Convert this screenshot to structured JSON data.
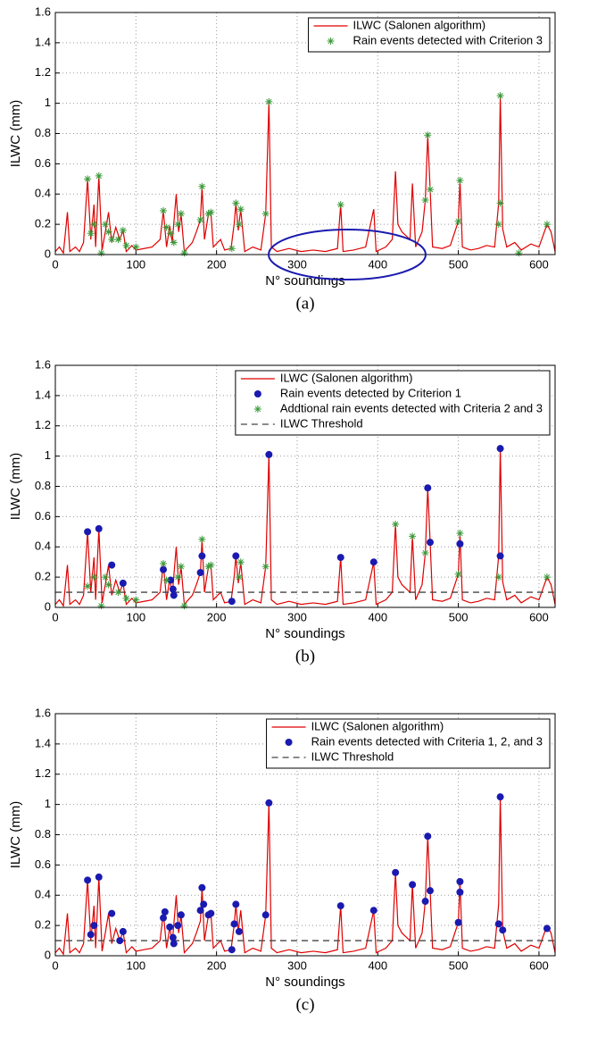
{
  "chart_data": [
    {
      "type": "line",
      "title": "(a)",
      "xlabel": "N° soundings",
      "ylabel": "ILWC (mm)",
      "xlim": [
        0,
        620
      ],
      "ylim": [
        0,
        1.6
      ],
      "xticks": [
        0,
        100,
        200,
        300,
        400,
        500,
        600
      ],
      "yticks": [
        0,
        0.2,
        0.4,
        0.6,
        0.8,
        1,
        1.2,
        1.4,
        1.6
      ],
      "grid": true,
      "legend": "upper right",
      "series": [
        {
          "name": "ILWC (Salonen algorithm)",
          "color": "#e00000",
          "style": "line",
          "x": [
            0,
            5,
            10,
            15,
            18,
            25,
            30,
            35,
            40,
            44,
            48,
            50,
            54,
            58,
            62,
            66,
            70,
            75,
            80,
            84,
            88,
            95,
            100,
            110,
            120,
            130,
            134,
            138,
            142,
            145,
            150,
            153,
            156,
            160,
            170,
            175,
            180,
            182,
            185,
            190,
            193,
            196,
            205,
            210,
            218,
            222,
            224,
            227,
            230,
            235,
            245,
            255,
            261,
            265,
            268,
            275,
            290,
            305,
            320,
            335,
            350,
            354,
            357,
            370,
            385,
            395,
            398,
            410,
            418,
            422,
            425,
            430,
            440,
            443,
            447,
            455,
            459,
            462,
            465,
            468,
            480,
            490,
            500,
            502,
            505,
            515,
            525,
            535,
            545,
            550,
            552,
            555,
            560,
            570,
            578,
            590,
            600,
            610,
            615,
            620
          ],
          "values": [
            0.02,
            0.05,
            0.01,
            0.28,
            0.02,
            0.05,
            0.02,
            0.08,
            0.5,
            0.1,
            0.33,
            0.05,
            0.52,
            0.03,
            0.15,
            0.28,
            0.08,
            0.18,
            0.1,
            0.16,
            0.02,
            0.06,
            0.03,
            0.04,
            0.05,
            0.1,
            0.29,
            0.05,
            0.19,
            0.08,
            0.4,
            0.15,
            0.27,
            0.02,
            0.08,
            0.15,
            0.23,
            0.45,
            0.1,
            0.27,
            0.28,
            0.05,
            0.1,
            0.03,
            0.04,
            0.21,
            0.34,
            0.16,
            0.3,
            0.02,
            0.05,
            0.03,
            0.27,
            1.01,
            0.05,
            0.02,
            0.04,
            0.02,
            0.03,
            0.02,
            0.04,
            0.33,
            0.02,
            0.03,
            0.05,
            0.3,
            0.02,
            0.05,
            0.1,
            0.55,
            0.2,
            0.15,
            0.1,
            0.47,
            0.05,
            0.15,
            0.36,
            0.79,
            0.43,
            0.05,
            0.04,
            0.06,
            0.22,
            0.49,
            0.05,
            0.03,
            0.04,
            0.06,
            0.05,
            0.34,
            1.05,
            0.17,
            0.05,
            0.08,
            0.03,
            0.07,
            0.05,
            0.2,
            0.15,
            0.02
          ]
        },
        {
          "name": "Rain events  detected with Criterion 3",
          "color": "#3a9a3a",
          "style": "star",
          "x": [
            40,
            44,
            48,
            54,
            57,
            62,
            66,
            70,
            78,
            84,
            88,
            100,
            134,
            138,
            143,
            147,
            152,
            156,
            160,
            180,
            182,
            190,
            193,
            219,
            224,
            228,
            230,
            261,
            265,
            354,
            459,
            462,
            465,
            500,
            502,
            550,
            552,
            552,
            575,
            610
          ],
          "values": [
            0.5,
            0.14,
            0.2,
            0.52,
            0.01,
            0.2,
            0.15,
            0.1,
            0.1,
            0.16,
            0.06,
            0.05,
            0.29,
            0.18,
            0.14,
            0.08,
            0.2,
            0.27,
            0.01,
            0.23,
            0.45,
            0.27,
            0.28,
            0.04,
            0.34,
            0.2,
            0.3,
            0.27,
            1.01,
            0.33,
            0.36,
            0.79,
            0.43,
            0.22,
            0.49,
            0.2,
            0.34,
            1.05,
            0.01,
            0.2
          ]
        }
      ]
    },
    {
      "type": "line",
      "title": "(b)",
      "xlabel": "N° soundings",
      "ylabel": "ILWC (mm)",
      "xlim": [
        0,
        620
      ],
      "ylim": [
        0,
        1.6
      ],
      "xticks": [
        0,
        100,
        200,
        300,
        400,
        500,
        600
      ],
      "yticks": [
        0,
        0.2,
        0.4,
        0.6,
        0.8,
        1,
        1.2,
        1.4,
        1.6
      ],
      "grid": true,
      "legend": "upper right",
      "series": [
        {
          "name": "ILWC (Salonen algorithm)",
          "color": "#e00000",
          "style": "line",
          "x": [
            0,
            5,
            10,
            15,
            18,
            25,
            30,
            35,
            40,
            44,
            48,
            50,
            54,
            58,
            62,
            66,
            70,
            75,
            80,
            84,
            88,
            95,
            100,
            110,
            120,
            130,
            134,
            138,
            142,
            145,
            150,
            153,
            156,
            160,
            170,
            175,
            180,
            182,
            185,
            190,
            193,
            196,
            205,
            210,
            218,
            222,
            224,
            227,
            230,
            235,
            245,
            255,
            261,
            265,
            268,
            275,
            290,
            305,
            320,
            335,
            350,
            354,
            357,
            370,
            385,
            395,
            398,
            410,
            418,
            422,
            425,
            430,
            440,
            443,
            447,
            455,
            459,
            462,
            465,
            468,
            480,
            490,
            500,
            502,
            505,
            515,
            525,
            535,
            545,
            550,
            552,
            555,
            560,
            570,
            578,
            590,
            600,
            610,
            615,
            620
          ],
          "values": [
            0.02,
            0.05,
            0.01,
            0.28,
            0.02,
            0.05,
            0.02,
            0.08,
            0.5,
            0.1,
            0.33,
            0.05,
            0.52,
            0.03,
            0.15,
            0.28,
            0.08,
            0.18,
            0.1,
            0.16,
            0.02,
            0.06,
            0.03,
            0.04,
            0.05,
            0.1,
            0.29,
            0.05,
            0.19,
            0.08,
            0.4,
            0.15,
            0.27,
            0.02,
            0.08,
            0.15,
            0.23,
            0.45,
            0.1,
            0.27,
            0.28,
            0.05,
            0.1,
            0.03,
            0.04,
            0.21,
            0.34,
            0.16,
            0.3,
            0.02,
            0.05,
            0.03,
            0.27,
            1.01,
            0.05,
            0.02,
            0.04,
            0.02,
            0.03,
            0.02,
            0.04,
            0.33,
            0.02,
            0.03,
            0.05,
            0.3,
            0.02,
            0.05,
            0.1,
            0.55,
            0.2,
            0.15,
            0.1,
            0.47,
            0.05,
            0.15,
            0.36,
            0.79,
            0.43,
            0.05,
            0.04,
            0.06,
            0.22,
            0.49,
            0.05,
            0.03,
            0.04,
            0.06,
            0.05,
            0.34,
            1.05,
            0.17,
            0.05,
            0.08,
            0.03,
            0.07,
            0.05,
            0.2,
            0.15,
            0.02
          ]
        },
        {
          "name": "Rain events detected by Criterion 1",
          "color": "#1a1ab0",
          "style": "dot",
          "x": [
            40,
            54,
            70,
            84,
            134,
            143,
            146,
            147,
            180,
            182,
            219,
            224,
            265,
            354,
            395,
            462,
            465,
            502,
            552,
            552
          ],
          "values": [
            0.5,
            0.52,
            0.28,
            0.16,
            0.25,
            0.18,
            0.12,
            0.08,
            0.23,
            0.34,
            0.04,
            0.34,
            1.01,
            0.33,
            0.3,
            0.79,
            0.43,
            0.42,
            1.05,
            0.34
          ]
        },
        {
          "name": "Addtional rain events detected with Criteria 2 and 3",
          "color": "#3a9a3a",
          "style": "star",
          "x": [
            40,
            48,
            57,
            62,
            66,
            78,
            88,
            100,
            134,
            138,
            152,
            156,
            160,
            182,
            190,
            193,
            228,
            230,
            261,
            422,
            443,
            459,
            500,
            502,
            550,
            610
          ],
          "values": [
            0.14,
            0.2,
            0.01,
            0.2,
            0.15,
            0.1,
            0.06,
            0.05,
            0.29,
            0.18,
            0.2,
            0.27,
            0.01,
            0.45,
            0.27,
            0.28,
            0.2,
            0.3,
            0.27,
            0.55,
            0.47,
            0.36,
            0.22,
            0.49,
            0.2,
            0.2
          ]
        }
      ],
      "threshold": {
        "name": "ILWC Threshold",
        "value": 0.1,
        "color": "#444444"
      }
    },
    {
      "type": "line",
      "title": "(c)",
      "xlabel": "N° soundings",
      "ylabel": "ILWC (mm)",
      "xlim": [
        0,
        620
      ],
      "ylim": [
        0,
        1.6
      ],
      "xticks": [
        0,
        100,
        200,
        300,
        400,
        500,
        600
      ],
      "yticks": [
        0,
        0.2,
        0.4,
        0.6,
        0.8,
        1,
        1.2,
        1.4,
        1.6
      ],
      "grid": true,
      "legend": "upper right",
      "series": [
        {
          "name": "ILWC (Salonen algorithm)",
          "color": "#e00000",
          "style": "line",
          "x": [
            0,
            5,
            10,
            15,
            18,
            25,
            30,
            35,
            40,
            44,
            48,
            50,
            54,
            58,
            62,
            66,
            70,
            75,
            80,
            84,
            88,
            95,
            100,
            110,
            120,
            130,
            134,
            138,
            142,
            145,
            150,
            153,
            156,
            160,
            170,
            175,
            180,
            182,
            185,
            190,
            193,
            196,
            205,
            210,
            218,
            222,
            224,
            227,
            230,
            235,
            245,
            255,
            261,
            265,
            268,
            275,
            290,
            305,
            320,
            335,
            350,
            354,
            357,
            370,
            385,
            395,
            398,
            410,
            418,
            422,
            425,
            430,
            440,
            443,
            447,
            455,
            459,
            462,
            465,
            468,
            480,
            490,
            500,
            502,
            505,
            515,
            525,
            535,
            545,
            550,
            552,
            555,
            560,
            570,
            578,
            590,
            600,
            610,
            615,
            620
          ],
          "values": [
            0.02,
            0.05,
            0.01,
            0.28,
            0.02,
            0.05,
            0.02,
            0.08,
            0.5,
            0.1,
            0.33,
            0.05,
            0.52,
            0.03,
            0.15,
            0.28,
            0.08,
            0.18,
            0.1,
            0.16,
            0.02,
            0.06,
            0.03,
            0.04,
            0.05,
            0.1,
            0.29,
            0.05,
            0.19,
            0.08,
            0.4,
            0.15,
            0.27,
            0.02,
            0.08,
            0.15,
            0.23,
            0.45,
            0.1,
            0.27,
            0.28,
            0.05,
            0.1,
            0.03,
            0.04,
            0.21,
            0.34,
            0.16,
            0.3,
            0.02,
            0.05,
            0.03,
            0.27,
            1.01,
            0.05,
            0.02,
            0.04,
            0.02,
            0.03,
            0.02,
            0.04,
            0.33,
            0.02,
            0.03,
            0.05,
            0.3,
            0.02,
            0.05,
            0.1,
            0.55,
            0.2,
            0.15,
            0.1,
            0.47,
            0.05,
            0.15,
            0.36,
            0.79,
            0.43,
            0.05,
            0.04,
            0.06,
            0.22,
            0.49,
            0.05,
            0.03,
            0.04,
            0.06,
            0.05,
            0.34,
            1.05,
            0.17,
            0.05,
            0.08,
            0.03,
            0.07,
            0.05,
            0.2,
            0.15,
            0.02
          ]
        },
        {
          "name": "Rain events detected with Criteria 1, 2, and 3",
          "color": "#1a1ab0",
          "style": "dot",
          "x": [
            40,
            44,
            48,
            54,
            70,
            80,
            84,
            134,
            136,
            142,
            146,
            147,
            152,
            156,
            180,
            182,
            184,
            190,
            193,
            219,
            222,
            224,
            228,
            261,
            265,
            354,
            395,
            422,
            443,
            459,
            462,
            465,
            500,
            502,
            502,
            550,
            552,
            555,
            610
          ],
          "values": [
            0.5,
            0.14,
            0.2,
            0.52,
            0.28,
            0.1,
            0.16,
            0.25,
            0.29,
            0.19,
            0.12,
            0.08,
            0.2,
            0.27,
            0.3,
            0.45,
            0.34,
            0.27,
            0.28,
            0.04,
            0.21,
            0.34,
            0.16,
            0.27,
            1.01,
            0.33,
            0.3,
            0.55,
            0.47,
            0.36,
            0.79,
            0.43,
            0.22,
            0.42,
            0.49,
            0.21,
            1.05,
            0.17,
            0.18
          ]
        }
      ],
      "threshold": {
        "name": "ILWC Threshold",
        "value": 0.1,
        "color": "#444444"
      }
    }
  ]
}
